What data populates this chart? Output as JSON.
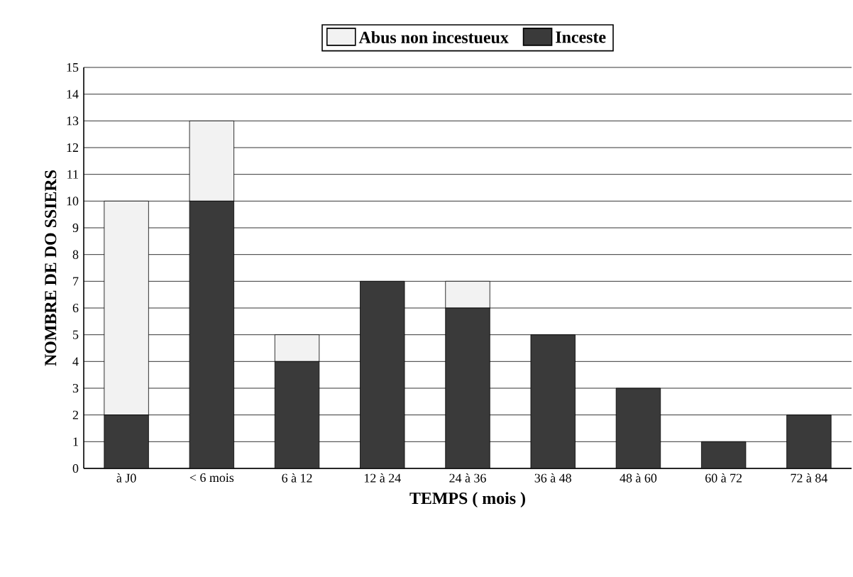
{
  "chart_data": {
    "type": "bar",
    "stacked": true,
    "xlabel": "TEMPS ( mois )",
    "ylabel": "NOMBRE DE DO SSIERS",
    "categories": [
      "à J0",
      "< 6 mois",
      "6 à 12",
      "12 à 24",
      "24 à 36",
      "36 à 48",
      "48 à 60",
      "60 à 72",
      "72 à 84"
    ],
    "series": [
      {
        "name": "Inceste",
        "color": "#3a3a3a",
        "values": [
          2,
          10,
          4,
          7,
          6,
          5,
          3,
          1,
          2
        ]
      },
      {
        "name": "Abus non incestueux",
        "color": "#f2f2f2",
        "values": [
          8,
          3,
          1,
          0,
          1,
          0,
          0,
          0,
          0
        ]
      }
    ],
    "ylim": [
      0,
      15
    ],
    "yticks": [
      0,
      1,
      2,
      3,
      4,
      5,
      6,
      7,
      8,
      9,
      10,
      11,
      12,
      13,
      14,
      15
    ],
    "grid": "y",
    "legend": "top"
  }
}
